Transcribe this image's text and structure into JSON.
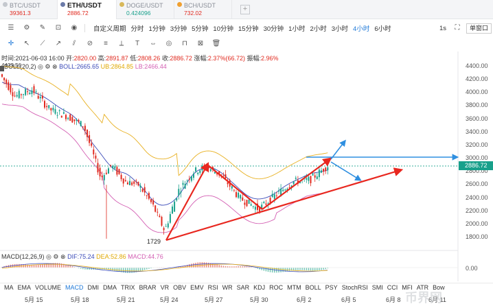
{
  "tabs": [
    {
      "symbol": "BTC/USDT",
      "price": "39361.3",
      "color": "#e0291e"
    },
    {
      "symbol": "ETH/USDT",
      "price": "2886.72",
      "color": "#e0291e"
    },
    {
      "symbol": "DOGE/USDT",
      "price": "0.424096",
      "color": "#18a08b"
    },
    {
      "symbol": "BCH/USDT",
      "price": "732.02",
      "color": "#e0291e"
    }
  ],
  "tab_add": "+",
  "toolbar": {
    "custom_period": "自定义周期",
    "periods": [
      "分时",
      "1分钟",
      "3分钟",
      "5分钟",
      "10分钟",
      "15分钟",
      "30分钟",
      "1小时",
      "2小时",
      "3小时",
      "4小时",
      "6小时"
    ],
    "active_period": "4小时",
    "interval": "1s",
    "window_mode": "单窗口"
  },
  "info": {
    "time_label": "时间:",
    "time": "2021-06-03 16:00",
    "open_label": "开:",
    "open": "2820.00",
    "high_label": "高:",
    "high": "2891.87",
    "low_label": "低:",
    "low": "2808.26",
    "close_label": "收:",
    "close": "2886.72",
    "change_label": "涨幅:",
    "change": "2.37%(66.72)",
    "amp_label": "振幅:",
    "amp": "2.96%"
  },
  "boll": {
    "name": "BOLL(20,2)",
    "mid": "BOLL:2665.65",
    "up": "UB:2864.85",
    "lo": "LB:2466.44",
    "corner_value": "4433.56"
  },
  "macd": {
    "name": "MACD(12,26,9)",
    "dif": "DIF:75.24",
    "dea": "DEA:52.86",
    "macd": "MACD:44.76",
    "axis": "0.00"
  },
  "y_axis": [
    "4400.00",
    "4200.00",
    "4000.00",
    "3800.00",
    "3600.00",
    "3400.00",
    "3200.00",
    "3000.00",
    "2800.00",
    "2600.00",
    "2400.00",
    "2200.00",
    "2000.00",
    "1800.00"
  ],
  "current_price": "2886.72",
  "low_label": "1729",
  "x_axis": [
    "5月 15",
    "5月 18",
    "5月 21",
    "5月 24",
    "5月 27",
    "5月 30",
    "6月 2",
    "6月 5",
    "6月 8",
    "6月 11"
  ],
  "indicators": [
    "MA",
    "EMA",
    "VOLUME",
    "MACD",
    "DMI",
    "DMA",
    "TRIX",
    "BRAR",
    "VR",
    "OBV",
    "EMV",
    "RSI",
    "WR",
    "SAR",
    "KDJ",
    "ROC",
    "MTM",
    "BOLL",
    "PSY",
    "StochRSI",
    "SMI",
    "CCI",
    "MFI",
    "ATR",
    "Bow"
  ],
  "active_indicator": "MACD",
  "watermark": "币界网",
  "colors": {
    "up": "#e0291e",
    "down": "#18a08b",
    "accent": "#1e78d7",
    "arrow_red": "#e8271f",
    "arrow_blue": "#2f8fe0"
  }
}
